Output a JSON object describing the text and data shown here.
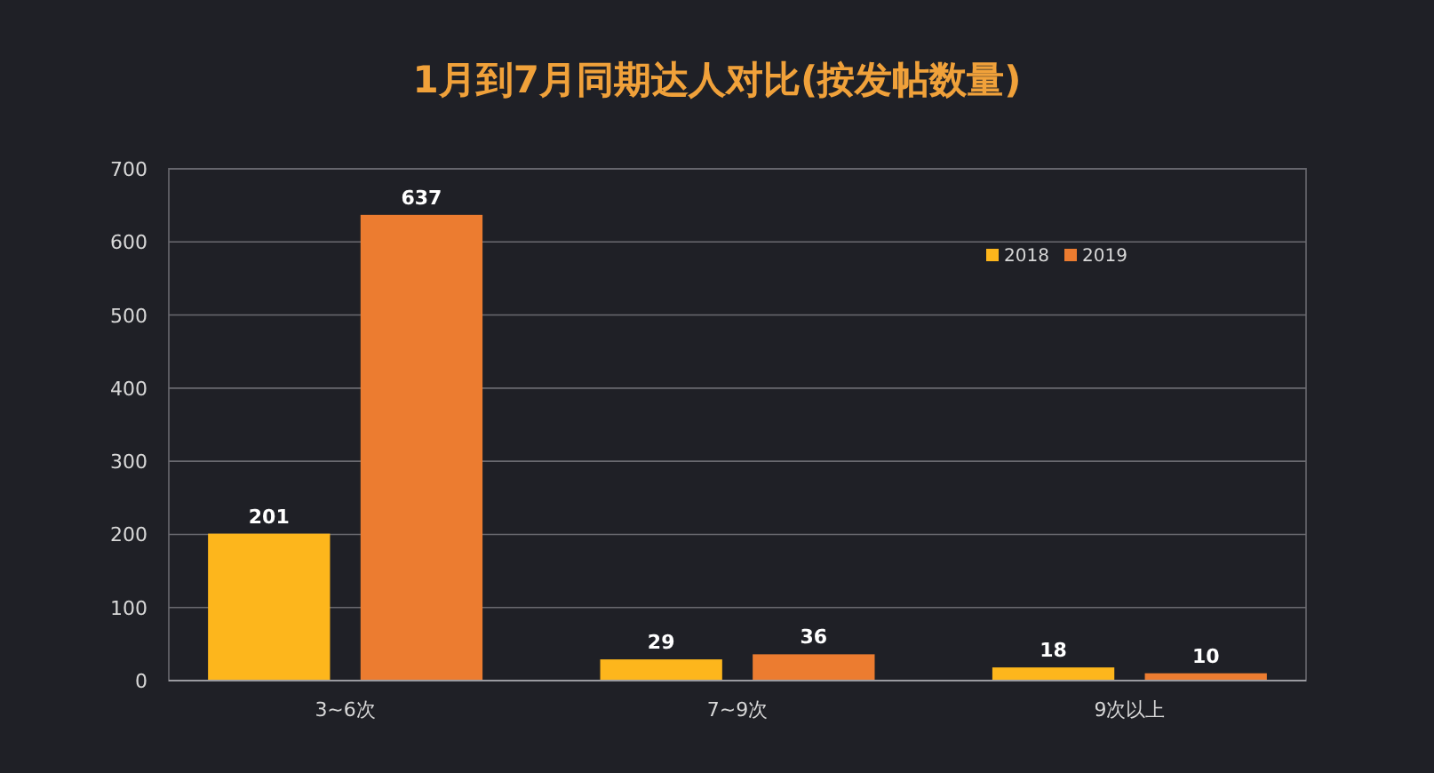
{
  "chart_data": {
    "type": "bar",
    "title": "1月到7月同期达人对比(按发帖数量)",
    "categories": [
      "3~6次",
      "7~9次",
      "9次以上"
    ],
    "series": [
      {
        "name": "2018",
        "color": "#fdb61c",
        "values": [
          201,
          29,
          18
        ]
      },
      {
        "name": "2019",
        "color": "#ec7c30",
        "values": [
          637,
          36,
          10
        ]
      }
    ],
    "ylim": [
      0,
      700
    ],
    "yticks": [
      0,
      100,
      200,
      300,
      400,
      500,
      600,
      700
    ],
    "grid": "y",
    "legend": "top right",
    "data_labels": true
  }
}
